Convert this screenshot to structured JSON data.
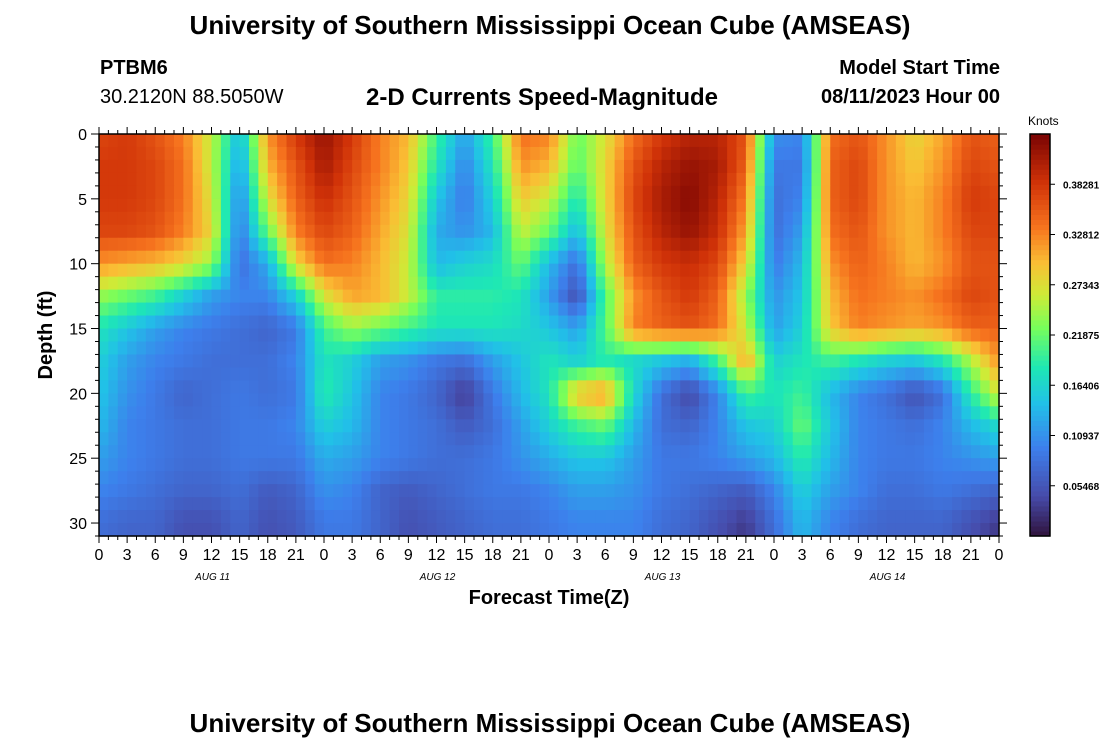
{
  "header": {
    "title": "University of Southern Mississippi Ocean Cube (AMSEAS)",
    "station_id": "PTBM6",
    "station_coords": "30.2120N  88.5050W",
    "plot_title": "2-D Currents Speed-Magnitude",
    "model_start_label": "Model Start Time",
    "model_start_value": "08/11/2023 Hour 00"
  },
  "footer": {
    "title": "University of Southern Mississippi Ocean Cube (AMSEAS)"
  },
  "chart_data": {
    "type": "heatmap",
    "title": "2-D Currents Speed-Magnitude",
    "xlabel": "Forecast Time(Z)",
    "ylabel": "Depth (ft)",
    "xlim": [
      0,
      96
    ],
    "ylim": [
      0,
      31
    ],
    "x_tick_labels": [
      "0",
      "3",
      "6",
      "9",
      "12",
      "15",
      "18",
      "21",
      "0",
      "3",
      "6",
      "9",
      "12",
      "15",
      "18",
      "21",
      "0",
      "3",
      "6",
      "9",
      "12",
      "15",
      "18",
      "21",
      "0",
      "3",
      "6",
      "9",
      "12",
      "15",
      "18",
      "21",
      "0"
    ],
    "day_labels": [
      {
        "label": "AUG 11",
        "hour": 12
      },
      {
        "label": "AUG 12",
        "hour": 36
      },
      {
        "label": "AUG 13",
        "hour": 60
      },
      {
        "label": "AUG 14",
        "hour": 84
      }
    ],
    "y_ticks": [
      0,
      5,
      10,
      15,
      20,
      25,
      30
    ],
    "colorbar": {
      "label": "Knots",
      "min": 0,
      "max": 0.4375,
      "tick_labels": [
        "0.38281",
        "0.32812",
        "0.27343",
        "0.21875",
        "0.16406",
        "0.10937",
        "0.05468"
      ],
      "tick_values": [
        0.38281,
        0.32812,
        0.27343,
        0.21875,
        0.16406,
        0.10937,
        0.05468
      ],
      "colormap": "turbo"
    },
    "depths_ft": [
      0,
      2.5,
      5,
      7.5,
      10,
      12.5,
      15,
      17.5,
      20,
      22.5,
      25,
      27.5,
      30
    ],
    "hours": [
      0,
      3,
      6,
      9,
      12,
      15,
      18,
      21,
      24,
      27,
      30,
      33,
      36,
      39,
      42,
      45,
      48,
      51,
      54,
      57,
      60,
      63,
      66,
      69,
      72,
      75,
      78,
      81,
      84,
      87,
      90,
      93,
      96
    ],
    "speed_knots": [
      [
        0.37,
        0.38,
        0.36,
        0.33,
        0.26,
        0.14,
        0.32,
        0.38,
        0.42,
        0.38,
        0.33,
        0.3,
        0.2,
        0.12,
        0.2,
        0.34,
        0.33,
        0.22,
        0.27,
        0.34,
        0.38,
        0.4,
        0.4,
        0.36,
        0.11,
        0.1,
        0.34,
        0.36,
        0.32,
        0.28,
        0.31,
        0.36,
        0.35
      ],
      [
        0.38,
        0.38,
        0.37,
        0.34,
        0.26,
        0.12,
        0.3,
        0.36,
        0.41,
        0.37,
        0.33,
        0.29,
        0.18,
        0.1,
        0.18,
        0.32,
        0.3,
        0.21,
        0.28,
        0.36,
        0.4,
        0.42,
        0.41,
        0.35,
        0.09,
        0.09,
        0.35,
        0.37,
        0.32,
        0.29,
        0.32,
        0.37,
        0.36
      ],
      [
        0.38,
        0.38,
        0.37,
        0.34,
        0.27,
        0.1,
        0.27,
        0.35,
        0.39,
        0.36,
        0.32,
        0.28,
        0.15,
        0.09,
        0.16,
        0.29,
        0.26,
        0.18,
        0.28,
        0.37,
        0.41,
        0.43,
        0.4,
        0.33,
        0.08,
        0.1,
        0.35,
        0.37,
        0.32,
        0.3,
        0.33,
        0.38,
        0.37
      ],
      [
        0.37,
        0.37,
        0.36,
        0.33,
        0.28,
        0.09,
        0.22,
        0.33,
        0.37,
        0.35,
        0.31,
        0.27,
        0.13,
        0.11,
        0.14,
        0.26,
        0.22,
        0.14,
        0.27,
        0.36,
        0.4,
        0.42,
        0.39,
        0.31,
        0.08,
        0.12,
        0.34,
        0.36,
        0.32,
        0.3,
        0.33,
        0.37,
        0.37
      ],
      [
        0.32,
        0.31,
        0.3,
        0.28,
        0.24,
        0.08,
        0.13,
        0.28,
        0.34,
        0.33,
        0.3,
        0.26,
        0.14,
        0.16,
        0.17,
        0.22,
        0.14,
        0.08,
        0.25,
        0.35,
        0.38,
        0.39,
        0.37,
        0.28,
        0.09,
        0.14,
        0.32,
        0.35,
        0.33,
        0.3,
        0.32,
        0.36,
        0.36
      ],
      [
        0.24,
        0.22,
        0.2,
        0.16,
        0.12,
        0.1,
        0.1,
        0.16,
        0.27,
        0.31,
        0.3,
        0.26,
        0.19,
        0.19,
        0.19,
        0.18,
        0.12,
        0.05,
        0.21,
        0.32,
        0.36,
        0.38,
        0.35,
        0.24,
        0.11,
        0.15,
        0.3,
        0.34,
        0.33,
        0.32,
        0.34,
        0.37,
        0.36
      ],
      [
        0.18,
        0.15,
        0.12,
        0.1,
        0.09,
        0.08,
        0.07,
        0.09,
        0.2,
        0.24,
        0.22,
        0.2,
        0.18,
        0.18,
        0.18,
        0.17,
        0.15,
        0.12,
        0.21,
        0.33,
        0.35,
        0.36,
        0.34,
        0.26,
        0.12,
        0.16,
        0.29,
        0.33,
        0.32,
        0.31,
        0.32,
        0.35,
        0.35
      ],
      [
        0.16,
        0.12,
        0.1,
        0.09,
        0.08,
        0.08,
        0.08,
        0.1,
        0.18,
        0.16,
        0.12,
        0.11,
        0.09,
        0.08,
        0.12,
        0.15,
        0.18,
        0.16,
        0.19,
        0.17,
        0.15,
        0.13,
        0.2,
        0.31,
        0.16,
        0.18,
        0.2,
        0.18,
        0.16,
        0.15,
        0.18,
        0.25,
        0.32
      ],
      [
        0.15,
        0.11,
        0.09,
        0.07,
        0.08,
        0.09,
        0.08,
        0.09,
        0.19,
        0.15,
        0.1,
        0.09,
        0.07,
        0.03,
        0.09,
        0.14,
        0.18,
        0.3,
        0.32,
        0.17,
        0.08,
        0.04,
        0.1,
        0.2,
        0.18,
        0.2,
        0.14,
        0.1,
        0.08,
        0.05,
        0.08,
        0.19,
        0.27
      ],
      [
        0.14,
        0.1,
        0.09,
        0.08,
        0.08,
        0.09,
        0.09,
        0.1,
        0.16,
        0.14,
        0.1,
        0.09,
        0.08,
        0.06,
        0.08,
        0.12,
        0.16,
        0.2,
        0.22,
        0.14,
        0.08,
        0.07,
        0.1,
        0.15,
        0.16,
        0.22,
        0.15,
        0.1,
        0.09,
        0.08,
        0.1,
        0.14,
        0.17
      ],
      [
        0.12,
        0.1,
        0.09,
        0.08,
        0.08,
        0.09,
        0.09,
        0.09,
        0.13,
        0.12,
        0.1,
        0.09,
        0.08,
        0.08,
        0.09,
        0.11,
        0.13,
        0.15,
        0.15,
        0.12,
        0.09,
        0.09,
        0.1,
        0.12,
        0.14,
        0.19,
        0.14,
        0.1,
        0.09,
        0.09,
        0.1,
        0.11,
        0.12
      ],
      [
        0.1,
        0.09,
        0.08,
        0.07,
        0.07,
        0.08,
        0.06,
        0.07,
        0.11,
        0.1,
        0.07,
        0.06,
        0.07,
        0.08,
        0.09,
        0.09,
        0.1,
        0.12,
        0.12,
        0.11,
        0.09,
        0.08,
        0.07,
        0.06,
        0.1,
        0.16,
        0.12,
        0.1,
        0.08,
        0.08,
        0.09,
        0.08,
        0.07
      ],
      [
        0.08,
        0.07,
        0.07,
        0.05,
        0.05,
        0.07,
        0.05,
        0.06,
        0.09,
        0.09,
        0.07,
        0.05,
        0.06,
        0.07,
        0.08,
        0.08,
        0.09,
        0.1,
        0.1,
        0.1,
        0.08,
        0.07,
        0.05,
        0.03,
        0.08,
        0.14,
        0.1,
        0.08,
        0.07,
        0.07,
        0.07,
        0.05,
        0.03
      ]
    ]
  }
}
